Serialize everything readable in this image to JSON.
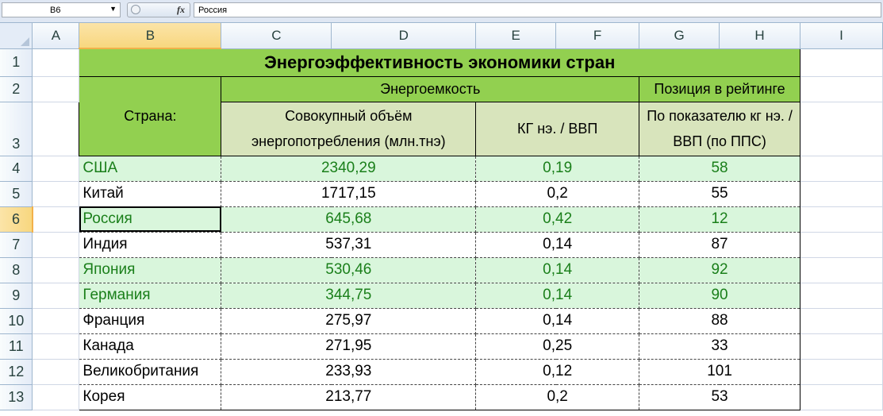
{
  "formula_bar": {
    "name_box": "B6",
    "fx_label": "fx",
    "formula_value": "Россия"
  },
  "columns": [
    "A",
    "B",
    "C",
    "D",
    "E",
    "F",
    "G",
    "H",
    "I"
  ],
  "row_numbers": [
    "1",
    "2",
    "3",
    "4",
    "5",
    "6",
    "7",
    "8",
    "9",
    "10",
    "11",
    "12",
    "13"
  ],
  "table": {
    "title": "Энергоэффективность экономики стран",
    "country_header": "Страна:",
    "energy_intensity_header": "Энергоемкость",
    "ranking_header": "Позиция в рейтинге",
    "total_consumption_header": "Совокупный объём энергопотребления (млн.тнэ)",
    "kg_gdp_header": "КГ нэ. / ВВП",
    "indicator_header": "По показателю кг нэ. / ВВП (по ППС)",
    "rows": [
      {
        "country": "США",
        "consumption": "2340,29",
        "kg_gdp": "0,19",
        "rank": "58"
      },
      {
        "country": "Китай",
        "consumption": "1717,15",
        "kg_gdp": "0,2",
        "rank": "55"
      },
      {
        "country": "Россия",
        "consumption": "645,68",
        "kg_gdp": "0,42",
        "rank": "12"
      },
      {
        "country": "Индия",
        "consumption": "537,31",
        "kg_gdp": "0,14",
        "rank": "87"
      },
      {
        "country": "Япония",
        "consumption": "530,46",
        "kg_gdp": "0,14",
        "rank": "92"
      },
      {
        "country": "Германия",
        "consumption": "344,75",
        "kg_gdp": "0,14",
        "rank": "90"
      },
      {
        "country": "Франция",
        "consumption": "275,97",
        "kg_gdp": "0,14",
        "rank": "88"
      },
      {
        "country": "Канада",
        "consumption": "271,95",
        "kg_gdp": "0,25",
        "rank": "33"
      },
      {
        "country": "Великобритания",
        "consumption": "233,93",
        "kg_gdp": "0,12",
        "rank": "101"
      },
      {
        "country": "Корея",
        "consumption": "213,77",
        "kg_gdp": "0,2",
        "rank": "53"
      }
    ]
  },
  "colors": {
    "header_green": "#92d050",
    "subheader_beige": "#d8e4bc",
    "highlight_row_bg": "#d9f6dc",
    "highlight_row_text": "#1a7f1a"
  }
}
